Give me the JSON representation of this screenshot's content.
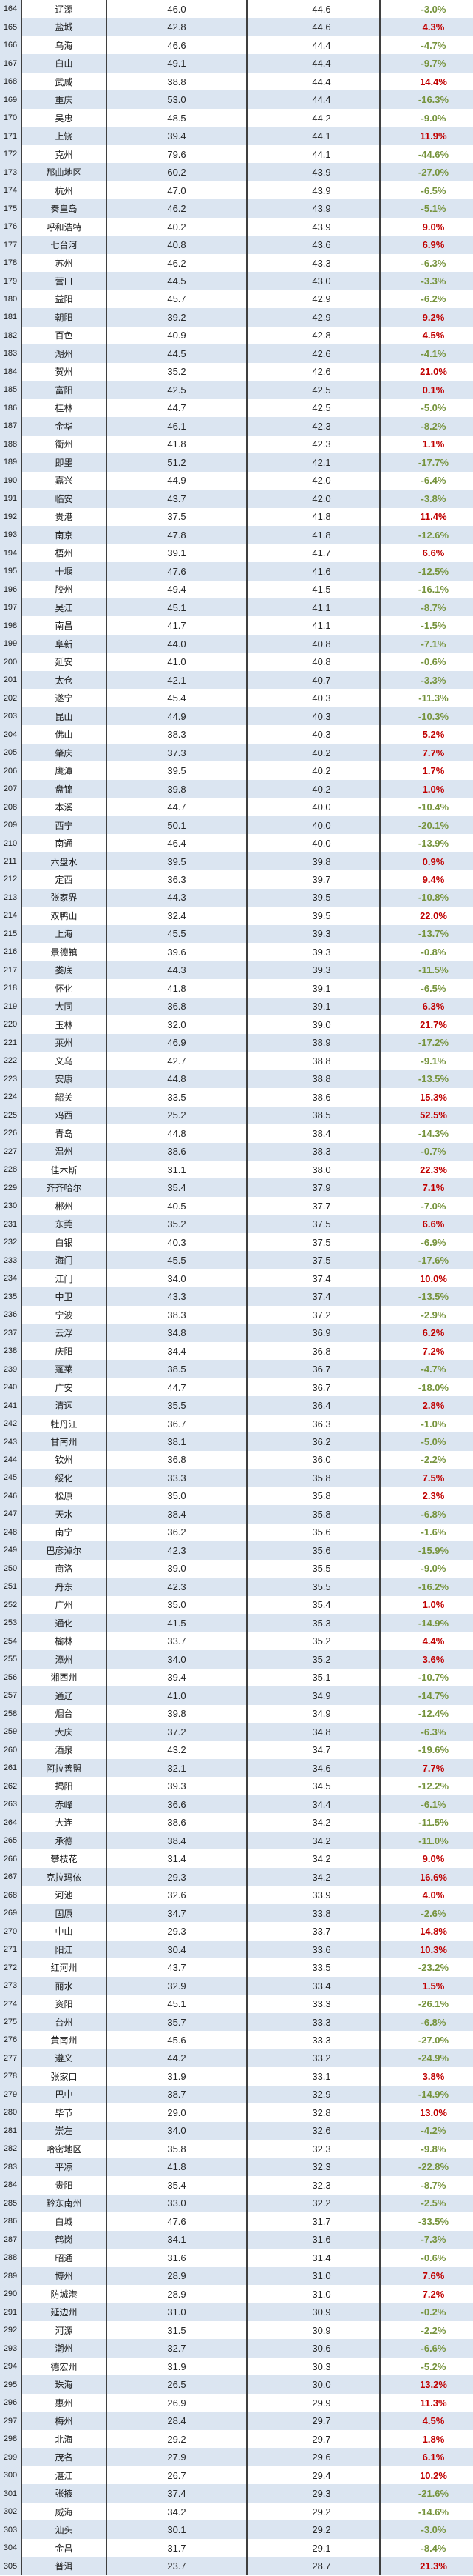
{
  "table": {
    "description": "striped spreadsheet ranking table, rows 164-305, columns: rank, city name, current value, reference value, percent change",
    "colors": {
      "positive_pct": "#c00000",
      "negative_pct": "#76933c",
      "stripe_blue": "#dbe5f1",
      "border": "#3f3f3f",
      "text": "#1a1a1a"
    },
    "rows": [
      [
        164,
        "辽源",
        "46.0",
        "44.6",
        "-3.0%"
      ],
      [
        165,
        "盐城",
        "42.8",
        "44.6",
        "4.3%"
      ],
      [
        166,
        "乌海",
        "46.6",
        "44.4",
        "-4.7%"
      ],
      [
        167,
        "白山",
        "49.1",
        "44.4",
        "-9.7%"
      ],
      [
        168,
        "武威",
        "38.8",
        "44.4",
        "14.4%"
      ],
      [
        169,
        "重庆",
        "53.0",
        "44.4",
        "-16.3%"
      ],
      [
        170,
        "吴忠",
        "48.5",
        "44.2",
        "-9.0%"
      ],
      [
        171,
        "上饶",
        "39.4",
        "44.1",
        "11.9%"
      ],
      [
        172,
        "克州",
        "79.6",
        "44.1",
        "-44.6%"
      ],
      [
        173,
        "那曲地区",
        "60.2",
        "43.9",
        "-27.0%"
      ],
      [
        174,
        "杭州",
        "47.0",
        "43.9",
        "-6.5%"
      ],
      [
        175,
        "秦皇岛",
        "46.2",
        "43.9",
        "-5.1%"
      ],
      [
        176,
        "呼和浩特",
        "40.2",
        "43.9",
        "9.0%"
      ],
      [
        177,
        "七台河",
        "40.8",
        "43.6",
        "6.9%"
      ],
      [
        178,
        "苏州",
        "46.2",
        "43.3",
        "-6.3%"
      ],
      [
        179,
        "营口",
        "44.5",
        "43.0",
        "-3.3%"
      ],
      [
        180,
        "益阳",
        "45.7",
        "42.9",
        "-6.2%"
      ],
      [
        181,
        "朝阳",
        "39.2",
        "42.9",
        "9.2%"
      ],
      [
        182,
        "百色",
        "40.9",
        "42.8",
        "4.5%"
      ],
      [
        183,
        "湖州",
        "44.5",
        "42.6",
        "-4.1%"
      ],
      [
        184,
        "贺州",
        "35.2",
        "42.6",
        "21.0%"
      ],
      [
        185,
        "富阳",
        "42.5",
        "42.5",
        "0.1%"
      ],
      [
        186,
        "桂林",
        "44.7",
        "42.5",
        "-5.0%"
      ],
      [
        187,
        "金华",
        "46.1",
        "42.3",
        "-8.2%"
      ],
      [
        188,
        "衢州",
        "41.8",
        "42.3",
        "1.1%"
      ],
      [
        189,
        "即墨",
        "51.2",
        "42.1",
        "-17.7%"
      ],
      [
        190,
        "嘉兴",
        "44.9",
        "42.0",
        "-6.4%"
      ],
      [
        191,
        "临安",
        "43.7",
        "42.0",
        "-3.8%"
      ],
      [
        192,
        "贵港",
        "37.5",
        "41.8",
        "11.4%"
      ],
      [
        193,
        "南京",
        "47.8",
        "41.8",
        "-12.6%"
      ],
      [
        194,
        "梧州",
        "39.1",
        "41.7",
        "6.6%"
      ],
      [
        195,
        "十堰",
        "47.6",
        "41.6",
        "-12.5%"
      ],
      [
        196,
        "胶州",
        "49.4",
        "41.5",
        "-16.1%"
      ],
      [
        197,
        "吴江",
        "45.1",
        "41.1",
        "-8.7%"
      ],
      [
        198,
        "南昌",
        "41.7",
        "41.1",
        "-1.5%"
      ],
      [
        199,
        "阜新",
        "44.0",
        "40.8",
        "-7.1%"
      ],
      [
        200,
        "延安",
        "41.0",
        "40.8",
        "-0.6%"
      ],
      [
        201,
        "太仓",
        "42.1",
        "40.7",
        "-3.3%"
      ],
      [
        202,
        "遂宁",
        "45.4",
        "40.3",
        "-11.3%"
      ],
      [
        203,
        "昆山",
        "44.9",
        "40.3",
        "-10.3%"
      ],
      [
        204,
        "佛山",
        "38.3",
        "40.3",
        "5.2%"
      ],
      [
        205,
        "肇庆",
        "37.3",
        "40.2",
        "7.7%"
      ],
      [
        206,
        "鹰潭",
        "39.5",
        "40.2",
        "1.7%"
      ],
      [
        207,
        "盘锦",
        "39.8",
        "40.2",
        "1.0%"
      ],
      [
        208,
        "本溪",
        "44.7",
        "40.0",
        "-10.4%"
      ],
      [
        209,
        "西宁",
        "50.1",
        "40.0",
        "-20.1%"
      ],
      [
        210,
        "南通",
        "46.4",
        "40.0",
        "-13.9%"
      ],
      [
        211,
        "六盘水",
        "39.5",
        "39.8",
        "0.9%"
      ],
      [
        212,
        "定西",
        "36.3",
        "39.7",
        "9.4%"
      ],
      [
        213,
        "张家界",
        "44.3",
        "39.5",
        "-10.8%"
      ],
      [
        214,
        "双鸭山",
        "32.4",
        "39.5",
        "22.0%"
      ],
      [
        215,
        "上海",
        "45.5",
        "39.3",
        "-13.7%"
      ],
      [
        216,
        "景德镇",
        "39.6",
        "39.3",
        "-0.8%"
      ],
      [
        217,
        "娄底",
        "44.3",
        "39.3",
        "-11.5%"
      ],
      [
        218,
        "怀化",
        "41.8",
        "39.1",
        "-6.5%"
      ],
      [
        219,
        "大同",
        "36.8",
        "39.1",
        "6.3%"
      ],
      [
        220,
        "玉林",
        "32.0",
        "39.0",
        "21.7%"
      ],
      [
        221,
        "莱州",
        "46.9",
        "38.9",
        "-17.2%"
      ],
      [
        222,
        "义乌",
        "42.7",
        "38.8",
        "-9.1%"
      ],
      [
        223,
        "安康",
        "44.8",
        "38.8",
        "-13.5%"
      ],
      [
        224,
        "韶关",
        "33.5",
        "38.6",
        "15.3%"
      ],
      [
        225,
        "鸡西",
        "25.2",
        "38.5",
        "52.5%"
      ],
      [
        226,
        "青岛",
        "44.8",
        "38.4",
        "-14.3%"
      ],
      [
        227,
        "温州",
        "38.6",
        "38.3",
        "-0.7%"
      ],
      [
        228,
        "佳木斯",
        "31.1",
        "38.0",
        "22.3%"
      ],
      [
        229,
        "齐齐哈尔",
        "35.4",
        "37.9",
        "7.1%"
      ],
      [
        230,
        "郴州",
        "40.5",
        "37.7",
        "-7.0%"
      ],
      [
        231,
        "东莞",
        "35.2",
        "37.5",
        "6.6%"
      ],
      [
        232,
        "白银",
        "40.3",
        "37.5",
        "-6.9%"
      ],
      [
        233,
        "海门",
        "45.5",
        "37.5",
        "-17.6%"
      ],
      [
        234,
        "江门",
        "34.0",
        "37.4",
        "10.0%"
      ],
      [
        235,
        "中卫",
        "43.3",
        "37.4",
        "-13.5%"
      ],
      [
        236,
        "宁波",
        "38.3",
        "37.2",
        "-2.9%"
      ],
      [
        237,
        "云浮",
        "34.8",
        "36.9",
        "6.2%"
      ],
      [
        238,
        "庆阳",
        "34.4",
        "36.8",
        "7.2%"
      ],
      [
        239,
        "蓬莱",
        "38.5",
        "36.7",
        "-4.7%"
      ],
      [
        240,
        "广安",
        "44.7",
        "36.7",
        "-18.0%"
      ],
      [
        241,
        "清远",
        "35.5",
        "36.4",
        "2.8%"
      ],
      [
        242,
        "牡丹江",
        "36.7",
        "36.3",
        "-1.0%"
      ],
      [
        243,
        "甘南州",
        "38.1",
        "36.2",
        "-5.0%"
      ],
      [
        244,
        "钦州",
        "36.8",
        "36.0",
        "-2.2%"
      ],
      [
        245,
        "绥化",
        "33.3",
        "35.8",
        "7.5%"
      ],
      [
        246,
        "松原",
        "35.0",
        "35.8",
        "2.3%"
      ],
      [
        247,
        "天水",
        "38.4",
        "35.8",
        "-6.8%"
      ],
      [
        248,
        "南宁",
        "36.2",
        "35.6",
        "-1.6%"
      ],
      [
        249,
        "巴彦淖尔",
        "42.3",
        "35.6",
        "-15.9%"
      ],
      [
        250,
        "商洛",
        "39.0",
        "35.5",
        "-9.0%"
      ],
      [
        251,
        "丹东",
        "42.3",
        "35.5",
        "-16.2%"
      ],
      [
        252,
        "广州",
        "35.0",
        "35.4",
        "1.0%"
      ],
      [
        253,
        "通化",
        "41.5",
        "35.3",
        "-14.9%"
      ],
      [
        254,
        "榆林",
        "33.7",
        "35.2",
        "4.4%"
      ],
      [
        255,
        "漳州",
        "34.0",
        "35.2",
        "3.6%"
      ],
      [
        256,
        "湘西州",
        "39.4",
        "35.1",
        "-10.7%"
      ],
      [
        257,
        "通辽",
        "41.0",
        "34.9",
        "-14.7%"
      ],
      [
        258,
        "烟台",
        "39.8",
        "34.9",
        "-12.4%"
      ],
      [
        259,
        "大庆",
        "37.2",
        "34.8",
        "-6.3%"
      ],
      [
        260,
        "酒泉",
        "43.2",
        "34.7",
        "-19.6%"
      ],
      [
        261,
        "阿拉善盟",
        "32.1",
        "34.6",
        "7.7%"
      ],
      [
        262,
        "揭阳",
        "39.3",
        "34.5",
        "-12.2%"
      ],
      [
        263,
        "赤峰",
        "36.6",
        "34.4",
        "-6.1%"
      ],
      [
        264,
        "大连",
        "38.6",
        "34.2",
        "-11.5%"
      ],
      [
        265,
        "承德",
        "38.4",
        "34.2",
        "-11.0%"
      ],
      [
        266,
        "攀枝花",
        "31.4",
        "34.2",
        "9.0%"
      ],
      [
        267,
        "克拉玛依",
        "29.3",
        "34.2",
        "16.6%"
      ],
      [
        268,
        "河池",
        "32.6",
        "33.9",
        "4.0%"
      ],
      [
        269,
        "固原",
        "34.7",
        "33.8",
        "-2.6%"
      ],
      [
        270,
        "中山",
        "29.3",
        "33.7",
        "14.8%"
      ],
      [
        271,
        "阳江",
        "30.4",
        "33.6",
        "10.3%"
      ],
      [
        272,
        "红河州",
        "43.7",
        "33.5",
        "-23.2%"
      ],
      [
        273,
        "丽水",
        "32.9",
        "33.4",
        "1.5%"
      ],
      [
        274,
        "资阳",
        "45.1",
        "33.3",
        "-26.1%"
      ],
      [
        275,
        "台州",
        "35.7",
        "33.3",
        "-6.8%"
      ],
      [
        276,
        "黄南州",
        "45.6",
        "33.3",
        "-27.0%"
      ],
      [
        277,
        "遵义",
        "44.2",
        "33.2",
        "-24.9%"
      ],
      [
        278,
        "张家口",
        "31.9",
        "33.1",
        "3.8%"
      ],
      [
        279,
        "巴中",
        "38.7",
        "32.9",
        "-14.9%"
      ],
      [
        280,
        "毕节",
        "29.0",
        "32.8",
        "13.0%"
      ],
      [
        281,
        "崇左",
        "34.0",
        "32.6",
        "-4.2%"
      ],
      [
        282,
        "哈密地区",
        "35.8",
        "32.3",
        "-9.8%"
      ],
      [
        283,
        "平凉",
        "41.8",
        "32.3",
        "-22.8%"
      ],
      [
        284,
        "贵阳",
        "35.4",
        "32.3",
        "-8.7%"
      ],
      [
        285,
        "黔东南州",
        "33.0",
        "32.2",
        "-2.5%"
      ],
      [
        286,
        "白城",
        "47.6",
        "31.7",
        "-33.5%"
      ],
      [
        287,
        "鹤岗",
        "34.1",
        "31.6",
        "-7.3%"
      ],
      [
        288,
        "昭通",
        "31.6",
        "31.4",
        "-0.6%"
      ],
      [
        289,
        "博州",
        "28.9",
        "31.0",
        "7.6%"
      ],
      [
        290,
        "防城港",
        "28.9",
        "31.0",
        "7.2%"
      ],
      [
        291,
        "延边州",
        "31.0",
        "30.9",
        "-0.2%"
      ],
      [
        292,
        "河源",
        "31.5",
        "30.9",
        "-2.2%"
      ],
      [
        293,
        "潮州",
        "32.7",
        "30.6",
        "-6.6%"
      ],
      [
        294,
        "德宏州",
        "31.9",
        "30.3",
        "-5.2%"
      ],
      [
        295,
        "珠海",
        "26.5",
        "30.0",
        "13.2%"
      ],
      [
        296,
        "惠州",
        "26.9",
        "29.9",
        "11.3%"
      ],
      [
        297,
        "梅州",
        "28.4",
        "29.7",
        "4.5%"
      ],
      [
        298,
        "北海",
        "29.2",
        "29.7",
        "1.8%"
      ],
      [
        299,
        "茂名",
        "27.9",
        "29.6",
        "6.1%"
      ],
      [
        300,
        "湛江",
        "26.7",
        "29.4",
        "10.2%"
      ],
      [
        301,
        "张掖",
        "37.4",
        "29.3",
        "-21.6%"
      ],
      [
        302,
        "威海",
        "34.2",
        "29.2",
        "-14.6%"
      ],
      [
        303,
        "汕头",
        "30.1",
        "29.2",
        "-3.0%"
      ],
      [
        304,
        "金昌",
        "31.7",
        "29.1",
        "-8.4%"
      ],
      [
        305,
        "普洱",
        "23.7",
        "28.7",
        "21.3%"
      ]
    ]
  }
}
